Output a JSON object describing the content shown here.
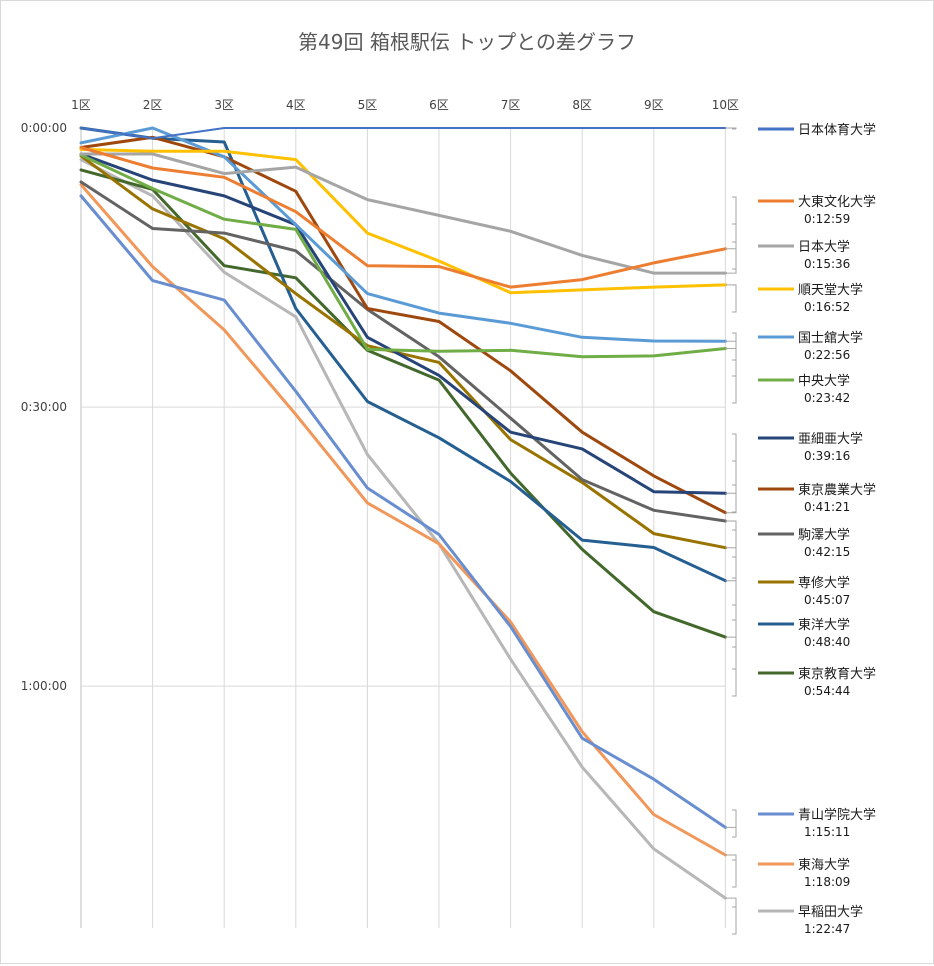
{
  "chart_data": {
    "type": "line",
    "title": "第49回 箱根駅伝 トップとの差グラフ",
    "xlabel": "",
    "ylabel": "",
    "categories": [
      "1区",
      "2区",
      "3区",
      "4区",
      "5区",
      "6区",
      "7区",
      "8区",
      "9区",
      "10区"
    ],
    "y_ticks": [
      {
        "seconds": 0,
        "label": "0:00:00"
      },
      {
        "seconds": 1800,
        "label": "0:30:00"
      },
      {
        "seconds": 3600,
        "label": "1:00:00"
      }
    ],
    "ylim_seconds": [
      0,
      5160
    ],
    "y_inverted": true,
    "grid": true,
    "legend_position": "right",
    "series": [
      {
        "name": "日本体育大学",
        "gap_label": "",
        "color": "#4472C4",
        "values": [
          0,
          66,
          0,
          0,
          0,
          0,
          0,
          0,
          0,
          0
        ]
      },
      {
        "name": "大東文化大学",
        "gap_label": "0:12:59",
        "color": "#ED7D31",
        "values": [
          126,
          258,
          318,
          540,
          888,
          894,
          1026,
          978,
          870,
          779
        ]
      },
      {
        "name": "日本大学",
        "gap_label": "0:15:36",
        "color": "#A5A5A5",
        "values": [
          168,
          168,
          294,
          252,
          462,
          564,
          666,
          822,
          936,
          936
        ]
      },
      {
        "name": "順天堂大学",
        "gap_label": "0:16:52",
        "color": "#FFC000",
        "values": [
          138,
          150,
          150,
          204,
          678,
          858,
          1062,
          1044,
          1026,
          1012
        ]
      },
      {
        "name": "国士舘大学",
        "gap_label": "0:22:56",
        "color": "#5B9BD5",
        "values": [
          96,
          0,
          186,
          624,
          1068,
          1194,
          1260,
          1350,
          1374,
          1376
        ]
      },
      {
        "name": "中央大学",
        "gap_label": "0:23:42",
        "color": "#70AD47",
        "values": [
          174,
          390,
          588,
          654,
          1428,
          1440,
          1434,
          1476,
          1470,
          1422
        ]
      },
      {
        "name": "亜細亜大学",
        "gap_label": "0:39:16",
        "color": "#264478",
        "values": [
          168,
          336,
          438,
          624,
          1350,
          1596,
          1962,
          2070,
          2346,
          2356
        ]
      },
      {
        "name": "東京農業大学",
        "gap_label": "0:41:21",
        "color": "#9E480E",
        "values": [
          126,
          60,
          186,
          408,
          1164,
          1248,
          1566,
          1962,
          2244,
          2481
        ]
      },
      {
        "name": "駒澤大学",
        "gap_label": "0:42:15",
        "color": "#636363",
        "values": [
          348,
          648,
          678,
          792,
          1170,
          1476,
          1872,
          2268,
          2466,
          2535
        ]
      },
      {
        "name": "専修大学",
        "gap_label": "0:45:07",
        "color": "#997300",
        "values": [
          180,
          522,
          714,
          1068,
          1404,
          1512,
          2010,
          2286,
          2616,
          2707
        ]
      },
      {
        "name": "東洋大学",
        "gap_label": "0:48:40",
        "color": "#255E91",
        "values": [
          0,
          66,
          90,
          1164,
          1764,
          1998,
          2280,
          2658,
          2706,
          2920
        ]
      },
      {
        "name": "東京教育大学",
        "gap_label": "0:54:44",
        "color": "#43682B",
        "values": [
          270,
          396,
          888,
          966,
          1434,
          1626,
          2226,
          2718,
          3120,
          3284
        ]
      },
      {
        "name": "青山学院大学",
        "gap_label": "1:15:11",
        "color": "#698ED0",
        "values": [
          438,
          984,
          1110,
          1698,
          2322,
          2622,
          3216,
          3936,
          4200,
          4511
        ]
      },
      {
        "name": "東海大学",
        "gap_label": "1:18:09",
        "color": "#F1975A",
        "values": [
          366,
          894,
          1302,
          1848,
          2418,
          2682,
          3186,
          3894,
          4428,
          4689
        ]
      },
      {
        "name": "早稲田大学",
        "gap_label": "1:22:47",
        "color": "#B7B7B7",
        "values": [
          204,
          438,
          930,
          1218,
          2106,
          2682,
          3426,
          4122,
          4650,
          4967
        ]
      }
    ]
  }
}
